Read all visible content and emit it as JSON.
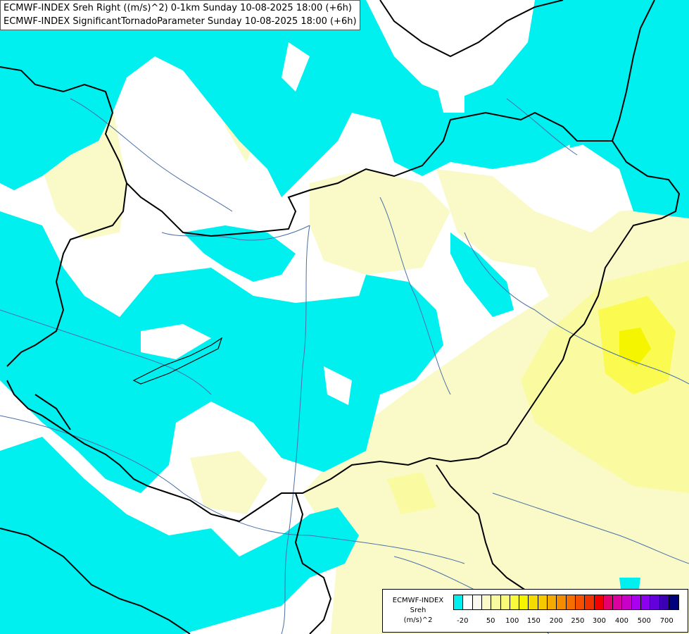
{
  "map": {
    "title_line1": "ECMWF-INDEX Sreh Right ((m/s)^2) 0-1km Sunday 10-08-2025 18:00 (+6h)",
    "title_line2": "ECMWF-INDEX SignificantTornadoParameter Sunday 10-08-2025 18:00 (+6h)",
    "colors": {
      "cyan": "#00f0f0",
      "pale_yellow": "#fafac8",
      "light_yellow": "#fafaa0",
      "yellow": "#fafa50",
      "bright_yellow": "#f5f500",
      "border": "#000000",
      "river": "#4a6fa8"
    }
  },
  "legend": {
    "title_lines": [
      "ECMWF-INDEX",
      "Sreh",
      "(m/s)^2"
    ],
    "colors": [
      "#00f0f0",
      "#ffffff",
      "#fafaf0",
      "#fafac8",
      "#fafaa0",
      "#fafa78",
      "#fafa3c",
      "#f5f500",
      "#f5dc00",
      "#f5c800",
      "#f5aa00",
      "#f58c00",
      "#f56e00",
      "#f55000",
      "#f03200",
      "#f00000",
      "#e6006e",
      "#dc00a0",
      "#c800c8",
      "#aa00f0",
      "#8c00f0",
      "#6400dc",
      "#3c00b4",
      "#00007e"
    ],
    "ticks": [
      "-20",
      "50",
      "100",
      "150",
      "200",
      "250",
      "300",
      "400",
      "500",
      "700"
    ]
  }
}
